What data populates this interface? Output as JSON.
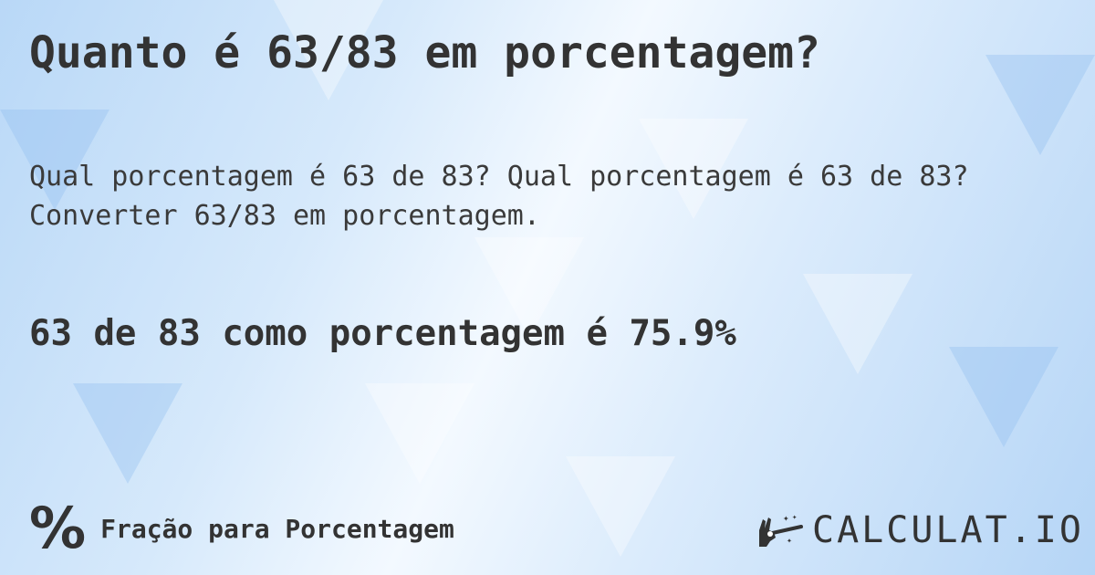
{
  "title": "Quanto é 63/83 em porcentagem?",
  "description": [
    "Qual porcentagem é 63 de 83? Qual porcentagem é 63 de 83?",
    "Converter 63/83 em porcentagem."
  ],
  "answer": "63 de 83 como porcentagem é 75.9%",
  "footer": {
    "icon": "percent-icon",
    "icon_glyph": "%",
    "label": "Fração para Porcentagem"
  },
  "logo": {
    "text": "CALCULAT.IO",
    "icon": "magic-hand-wand-icon"
  },
  "colors": {
    "text": "#333333",
    "background": "#cfe4fa"
  }
}
